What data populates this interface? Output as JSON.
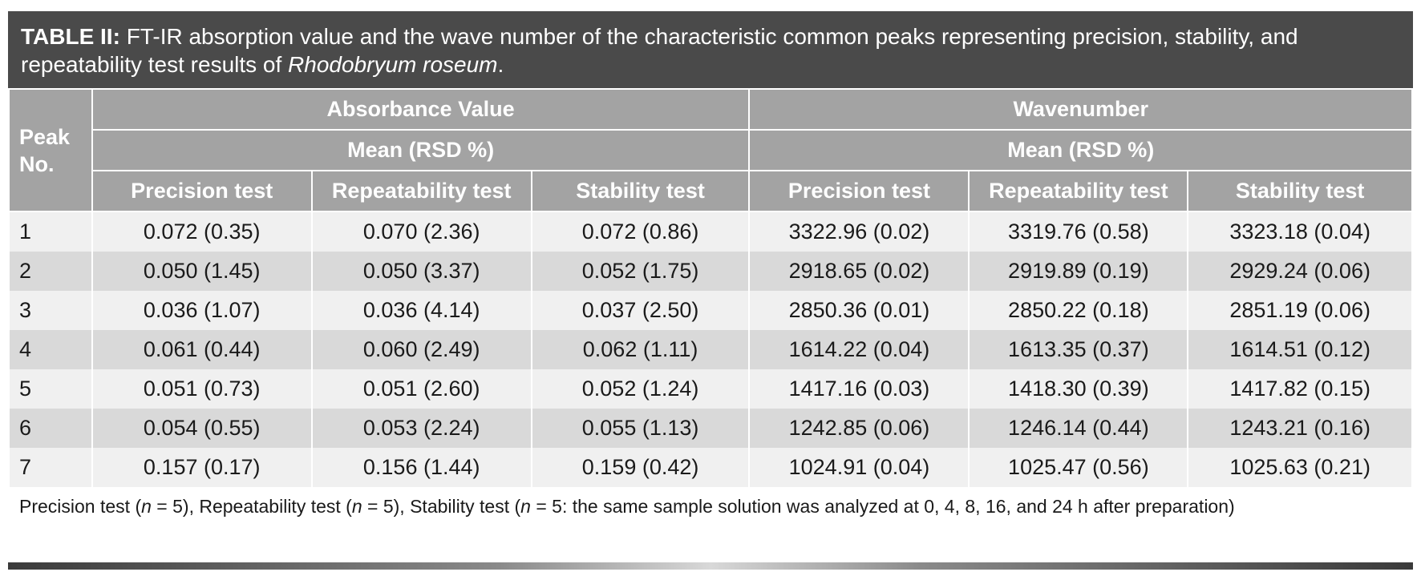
{
  "title": {
    "label": "TABLE II:",
    "text_before_italic": " FT-IR absorption value and the wave number of the characteristic common peaks representing precision, stability, and repeatability test results of ",
    "species": "Rhodobryum roseum",
    "text_after_italic": "."
  },
  "header": {
    "peak_no": "Peak No.",
    "groups": [
      "Absorbance Value",
      "Wavenumber"
    ],
    "subgroup": "Mean (RSD %)",
    "columns": [
      "Precision test",
      "Repeatability test",
      "Stability test",
      "Precision test",
      "Repeatability test",
      "Stability test"
    ]
  },
  "rows": [
    {
      "peak": "1",
      "cells": [
        "0.072 (0.35)",
        "0.070 (2.36)",
        "0.072 (0.86)",
        "3322.96 (0.02)",
        "3319.76 (0.58)",
        "3323.18 (0.04)"
      ]
    },
    {
      "peak": "2",
      "cells": [
        "0.050 (1.45)",
        "0.050 (3.37)",
        "0.052 (1.75)",
        "2918.65 (0.02)",
        "2919.89 (0.19)",
        "2929.24 (0.06)"
      ]
    },
    {
      "peak": "3",
      "cells": [
        "0.036 (1.07)",
        "0.036 (4.14)",
        "0.037 (2.50)",
        "2850.36 (0.01)",
        "2850.22 (0.18)",
        "2851.19 (0.06)"
      ]
    },
    {
      "peak": "4",
      "cells": [
        "0.061 (0.44)",
        "0.060 (2.49)",
        "0.062 (1.11)",
        "1614.22 (0.04)",
        "1613.35 (0.37)",
        "1614.51 (0.12)"
      ]
    },
    {
      "peak": "5",
      "cells": [
        "0.051 (0.73)",
        "0.051 (2.60)",
        "0.052 (1.24)",
        "1417.16 (0.03)",
        "1418.30 (0.39)",
        "1417.82 (0.15)"
      ]
    },
    {
      "peak": "6",
      "cells": [
        "0.054 (0.55)",
        "0.053 (2.24)",
        "0.055 (1.13)",
        "1242.85 (0.06)",
        "1246.14 (0.44)",
        "1243.21 (0.16)"
      ]
    },
    {
      "peak": "7",
      "cells": [
        "0.157 (0.17)",
        "0.156 (1.44)",
        "0.159 (0.42)",
        "1024.91 (0.04)",
        "1025.47 (0.56)",
        "1025.63 (0.21)"
      ]
    }
  ],
  "footnote": {
    "p1": "Precision test (",
    "n1": "n",
    "p2": " = 5), Repeatability test (",
    "n2": "n",
    "p3": " = 5), Stability test (",
    "n3": "n",
    "p4": " = 5: the same sample solution was analyzed at 0, 4, 8, 16, and 24 h after preparation)"
  }
}
